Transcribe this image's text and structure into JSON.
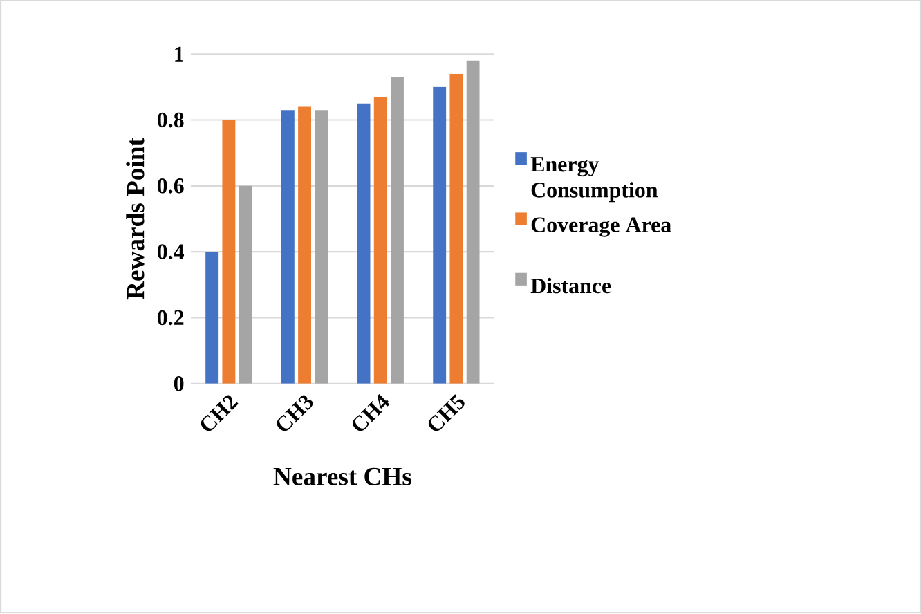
{
  "chart_data": {
    "type": "bar",
    "xlabel": "Nearest CHs",
    "ylabel": "Rewards Point",
    "categories": [
      "CH2",
      "CH3",
      "CH4",
      "CH5"
    ],
    "series": [
      {
        "name": "Energy Consumption",
        "color": "#4472c4",
        "values": [
          0.4,
          0.83,
          0.85,
          0.9
        ]
      },
      {
        "name": "Coverage Area",
        "color": "#ed7d31",
        "values": [
          0.8,
          0.84,
          0.87,
          0.94
        ]
      },
      {
        "name": "Distance",
        "color": "#a5a5a5",
        "values": [
          0.6,
          0.83,
          0.93,
          0.98
        ]
      }
    ],
    "ylim": [
      0,
      1
    ],
    "yticks": [
      0,
      0.2,
      0.4,
      0.6,
      0.8,
      1
    ],
    "grid": "y",
    "legend": "right"
  }
}
